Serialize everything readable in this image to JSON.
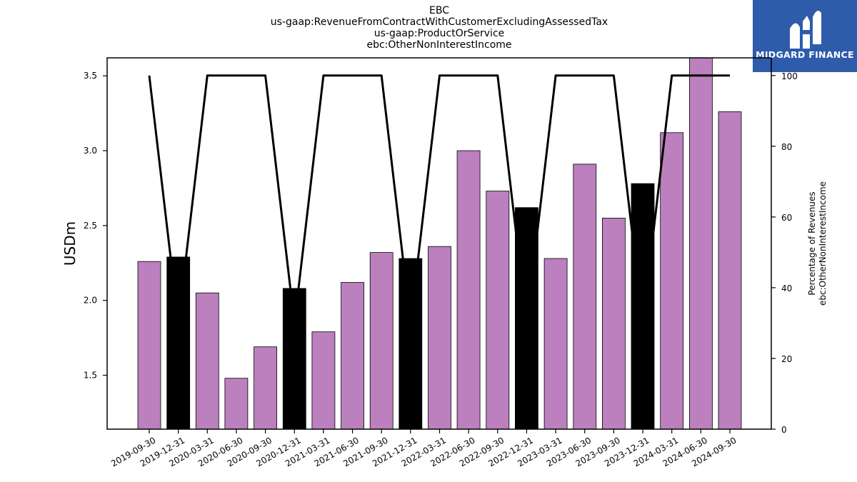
{
  "header": {
    "title_lines": [
      "EBC",
      "us-gaap:RevenueFromContractWithCustomerExcludingAssessedTax",
      "us-gaap:ProductOrService",
      "ebc:OtherNonInterestIncome"
    ]
  },
  "logo": {
    "text": "MIDGARD FINANCE",
    "bg_color": "#2f5bab"
  },
  "chart_data": {
    "type": "bar",
    "categories": [
      "2019-09-30",
      "2019-12-31",
      "2020-03-31",
      "2020-06-30",
      "2020-09-30",
      "2020-12-31",
      "2021-03-31",
      "2021-06-30",
      "2021-09-30",
      "2021-12-31",
      "2022-03-31",
      "2022-06-30",
      "2022-09-30",
      "2022-12-31",
      "2023-03-31",
      "2023-06-30",
      "2023-09-30",
      "2023-12-31",
      "2024-03-31",
      "2024-06-30",
      "2024-09-30"
    ],
    "series": [
      {
        "type": "bar",
        "axis": "left",
        "values": [
          2.26,
          2.29,
          2.05,
          1.48,
          1.69,
          2.08,
          1.79,
          2.12,
          2.32,
          2.28,
          2.36,
          3.0,
          2.73,
          2.62,
          2.28,
          2.91,
          2.55,
          2.78,
          3.12,
          3.62,
          3.26
        ],
        "colors": [
          "#bb80bd",
          "#000000",
          "#bb80bd",
          "#bb80bd",
          "#bb80bd",
          "#000000",
          "#bb80bd",
          "#bb80bd",
          "#bb80bd",
          "#000000",
          "#bb80bd",
          "#bb80bd",
          "#bb80bd",
          "#000000",
          "#bb80bd",
          "#bb80bd",
          "#bb80bd",
          "#000000",
          "#bb80bd",
          "#bb80bd",
          "#bb80bd"
        ]
      },
      {
        "type": "line",
        "axis": "right",
        "color": "#000000",
        "values": [
          100,
          30,
          100,
          100,
          100,
          30,
          100,
          100,
          100,
          30,
          100,
          100,
          100,
          30,
          100,
          100,
          100,
          30,
          100,
          100,
          100
        ]
      }
    ],
    "ylabel": "USDm",
    "y2label_lines": [
      "Percentage of Revenues",
      "ebc:OtherNonInterestIncome"
    ],
    "ylim": [
      1.14,
      3.62
    ],
    "y2lim": [
      0,
      105
    ],
    "yticks": [
      1.5,
      2.0,
      2.5,
      3.0,
      3.5
    ],
    "y2ticks": [
      0,
      20,
      40,
      60,
      80,
      100
    ],
    "ytick_labels": [
      "1.5",
      "2.0",
      "2.5",
      "3.0",
      "3.5"
    ],
    "y2tick_labels": [
      "0",
      "20",
      "40",
      "60",
      "80",
      "100"
    ],
    "grid": false,
    "legend": "none"
  }
}
